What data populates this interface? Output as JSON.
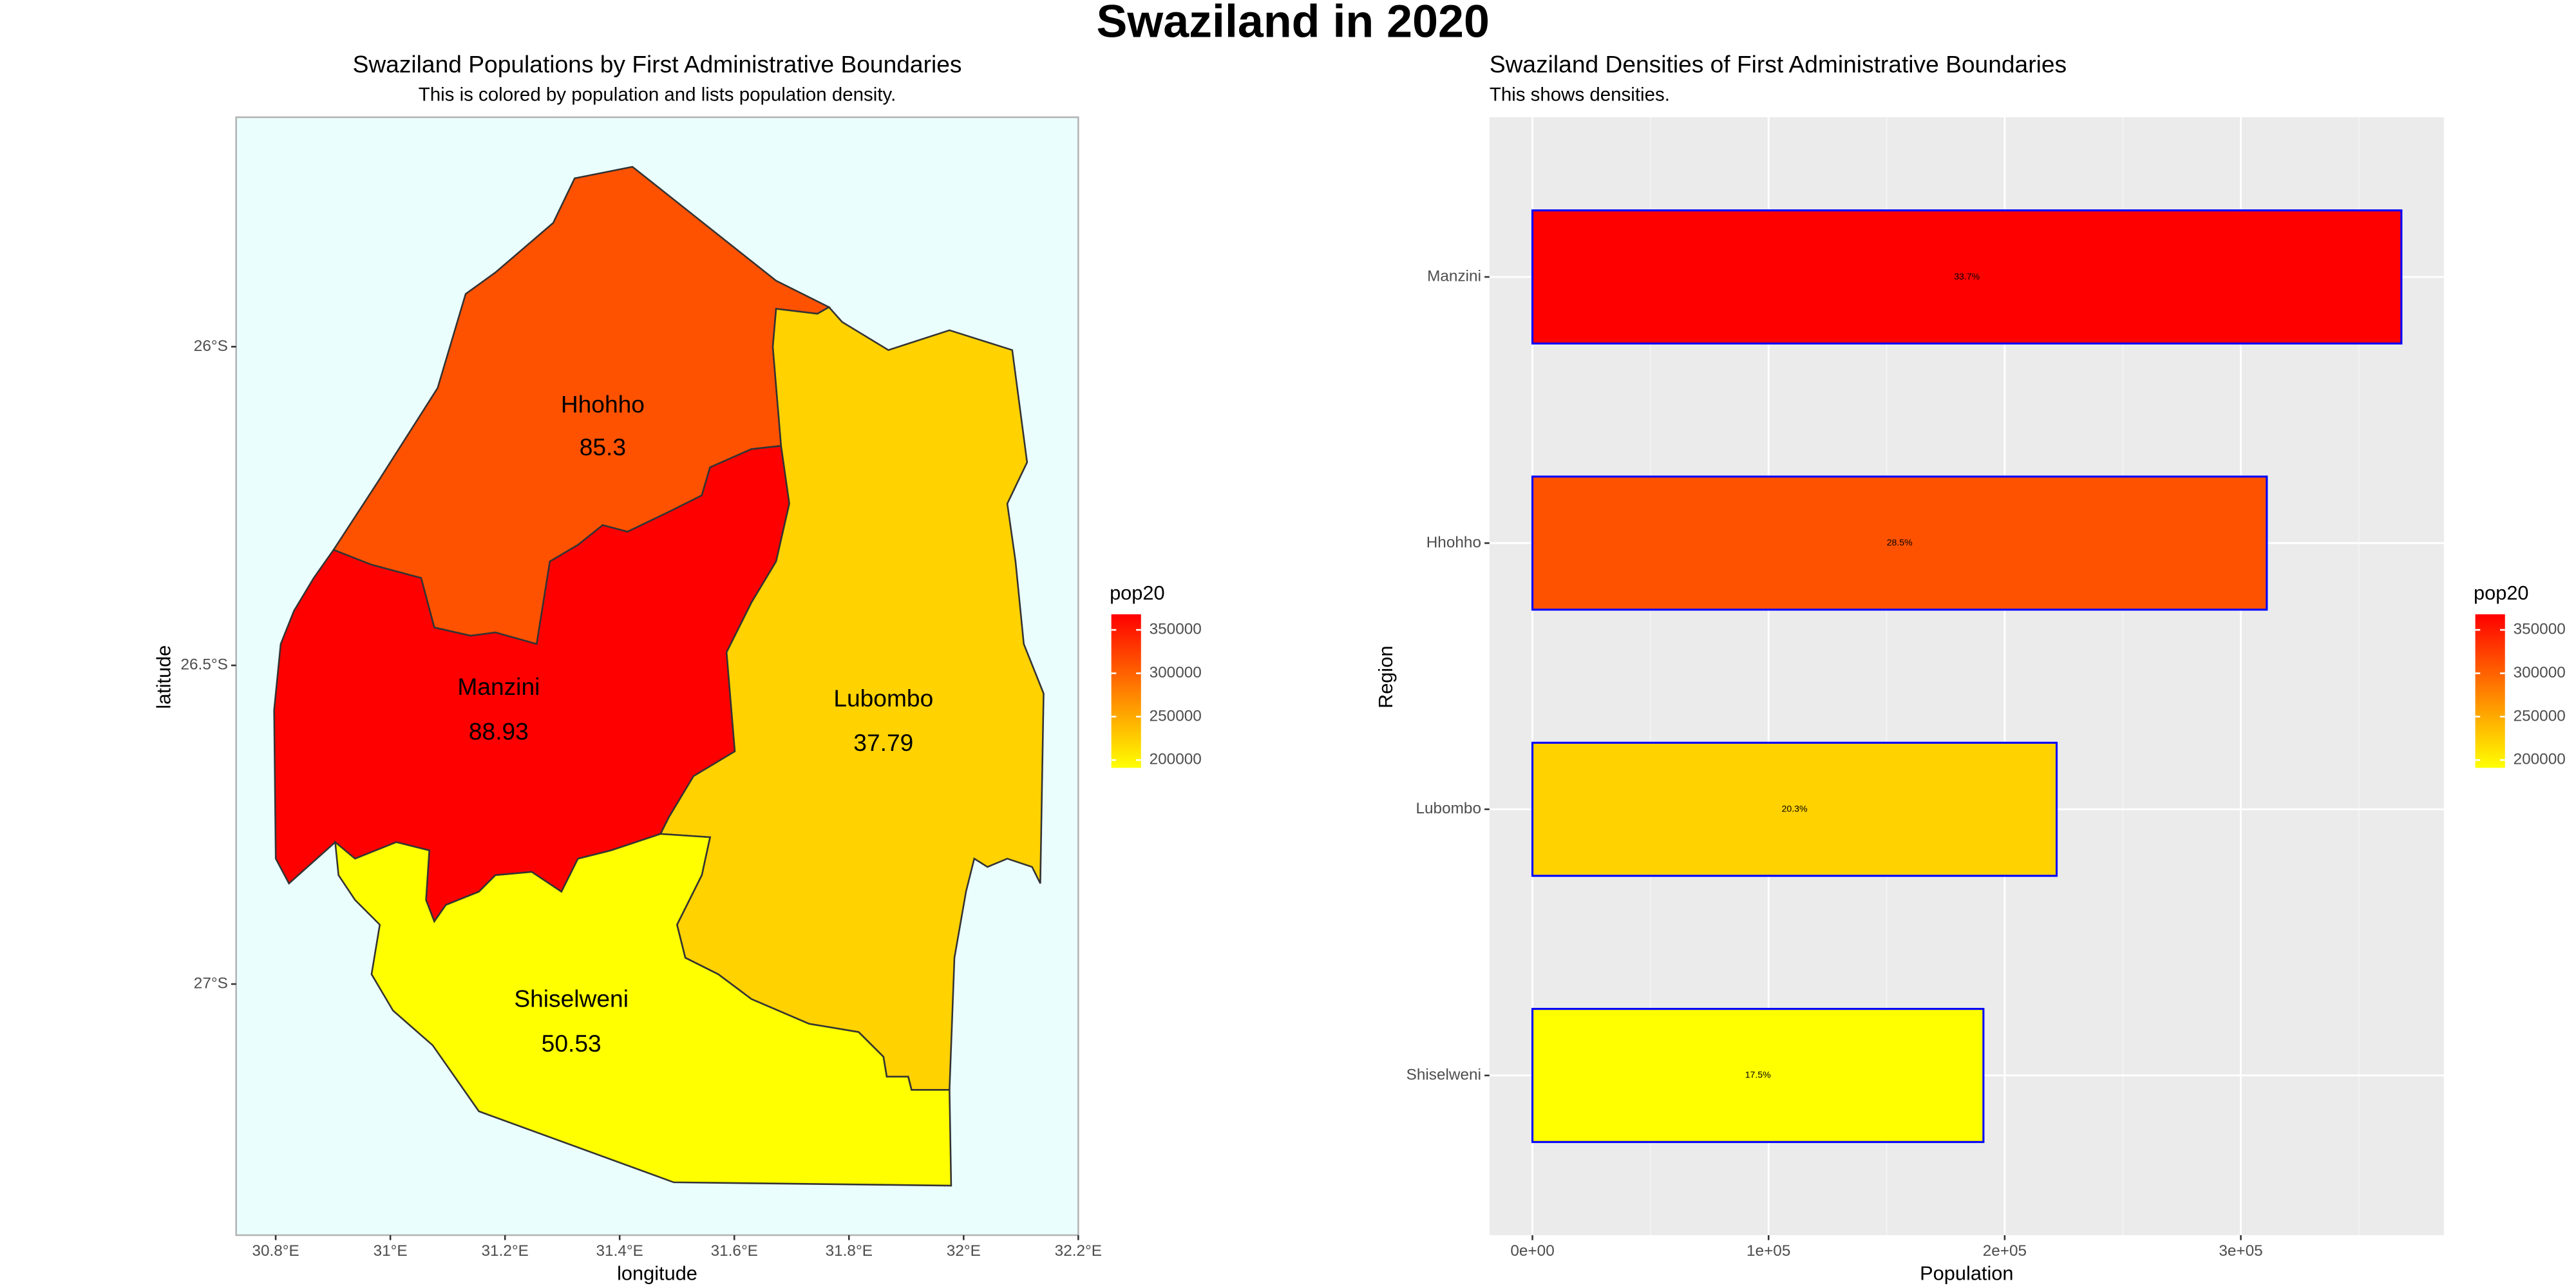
{
  "title": "Swaziland in 2020",
  "chart_data": [
    {
      "type": "map",
      "title": "Swaziland Populations by First Administrative Boundaries",
      "subtitle": "This is colored by population and lists population density.",
      "x_label": "longitude",
      "y_label": "latitude",
      "xlim": [
        30.731,
        32.2
      ],
      "ylim": [
        -27.394,
        -25.64
      ],
      "xticks": [
        {
          "value": 30.8,
          "label": "30.8°E"
        },
        {
          "value": 31,
          "label": "31°E"
        },
        {
          "value": 31.2,
          "label": "31.2°E"
        },
        {
          "value": 31.4,
          "label": "31.4°E"
        },
        {
          "value": 31.6,
          "label": "31.6°E"
        },
        {
          "value": 31.8,
          "label": "31.8°E"
        },
        {
          "value": 32,
          "label": "32°E"
        },
        {
          "value": 32.2,
          "label": "32.2°E"
        }
      ],
      "yticks": [
        {
          "value": -26,
          "label": "26°S"
        },
        {
          "value": -26.5,
          "label": "26.5°S"
        },
        {
          "value": -27,
          "label": "27°S"
        }
      ],
      "regions": [
        "Hhohho",
        "Manzini",
        "Lubombo",
        "Shiselweni"
      ],
      "population": [
        311000,
        368000,
        222000,
        191000
      ],
      "density": [
        85.3,
        88.93,
        37.79,
        50.53
      ],
      "label_color": "#0000ff",
      "background": "#ebfefe",
      "legend_title": "pop20",
      "legend_ticks": [
        200000,
        250000,
        300000,
        350000
      ],
      "colorscale": [
        "#ffff00",
        "#ff0000"
      ]
    },
    {
      "type": "bar",
      "orientation": "horizontal",
      "title": "Swaziland Densities of First Administrative Boundaries",
      "subtitle": "This shows densities.",
      "x_label": "Population",
      "y_label": "Region",
      "categories": [
        "Shiselweni",
        "Lubombo",
        "Hhohho",
        "Manzini"
      ],
      "values": [
        191000,
        222000,
        311000,
        368000
      ],
      "share_labels": [
        "17.5%",
        "20.3%",
        "28.5%",
        "33.7%"
      ],
      "xlim": [
        -18200,
        386000
      ],
      "xticks": [
        {
          "value": 0,
          "label": "0e+00"
        },
        {
          "value": 100000,
          "label": "1e+05"
        },
        {
          "value": 200000,
          "label": "2e+05"
        },
        {
          "value": 300000,
          "label": "3e+05"
        }
      ],
      "edge_color": "#0000ff",
      "grid": true,
      "legend_title": "pop20",
      "legend_ticks": [
        200000,
        250000,
        300000,
        350000
      ],
      "colorscale": [
        "#ffff00",
        "#ff0000"
      ]
    }
  ]
}
